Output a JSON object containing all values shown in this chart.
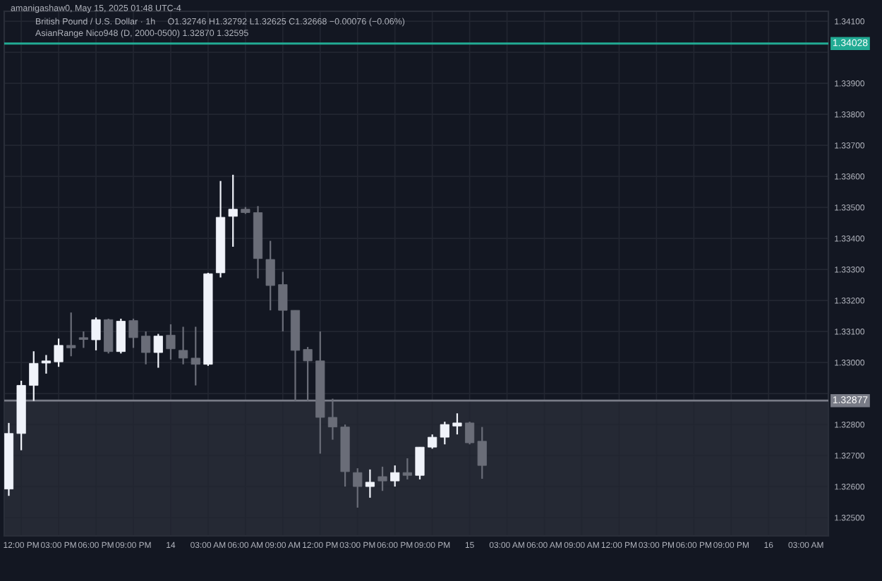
{
  "chart_data": {
    "type": "candlestick",
    "title": "British Pound / U.S. Dollar · 1h",
    "subtitle": "O1.32746 H1.32792 L1.32625 C1.32668 −0.00076 (−0.06%)",
    "annotations": [
      "amanigashaw0, May 15, 2025 01:48 UTC-4",
      "AsianRange Nico948 (D, 2000-0500) 1.32870 1.32595"
    ],
    "x": [
      "2025-05-13T11:00",
      "2025-05-13T12:00",
      "2025-05-13T13:00",
      "2025-05-13T14:00",
      "2025-05-13T15:00",
      "2025-05-13T16:00",
      "2025-05-13T17:00",
      "2025-05-13T18:00",
      "2025-05-13T19:00",
      "2025-05-13T20:00",
      "2025-05-13T21:00",
      "2025-05-13T22:00",
      "2025-05-13T23:00",
      "2025-05-14T00:00",
      "2025-05-14T01:00",
      "2025-05-14T02:00",
      "2025-05-14T03:00",
      "2025-05-14T04:00",
      "2025-05-14T05:00",
      "2025-05-14T06:00",
      "2025-05-14T07:00",
      "2025-05-14T08:00",
      "2025-05-14T09:00",
      "2025-05-14T10:00",
      "2025-05-14T11:00",
      "2025-05-14T12:00",
      "2025-05-14T13:00",
      "2025-05-14T14:00",
      "2025-05-14T15:00",
      "2025-05-14T16:00",
      "2025-05-14T17:00",
      "2025-05-14T18:00",
      "2025-05-14T19:00",
      "2025-05-14T20:00",
      "2025-05-14T21:00",
      "2025-05-14T22:00",
      "2025-05-14T23:00",
      "2025-05-15T00:00",
      "2025-05-15T01:00"
    ],
    "ohlc": [
      [
        1.32592,
        1.32805,
        1.3257,
        1.32771
      ],
      [
        1.32771,
        1.32941,
        1.32717,
        1.32926
      ],
      [
        1.32926,
        1.33036,
        1.32876,
        1.32997
      ],
      [
        1.32998,
        1.33024,
        1.32964,
        1.33005
      ],
      [
        1.33002,
        1.33077,
        1.32986,
        1.33055
      ],
      [
        1.33055,
        1.33161,
        1.3302,
        1.33047
      ],
      [
        1.3308,
        1.331,
        1.33047,
        1.33074
      ],
      [
        1.33073,
        1.33145,
        1.33039,
        1.33138
      ],
      [
        1.33138,
        1.33141,
        1.33029,
        1.33035
      ],
      [
        1.33035,
        1.33141,
        1.33029,
        1.33133
      ],
      [
        1.33135,
        1.33141,
        1.33047,
        1.3308
      ],
      [
        1.33085,
        1.331,
        1.32994,
        1.33032
      ],
      [
        1.33032,
        1.33092,
        1.32983,
        1.33085
      ],
      [
        1.33088,
        1.33123,
        1.33009,
        1.33044
      ],
      [
        1.33039,
        1.33115,
        1.32994,
        1.33014
      ],
      [
        1.33014,
        1.33115,
        1.32926,
        1.32994
      ],
      [
        1.32994,
        1.33289,
        1.32989,
        1.33286
      ],
      [
        1.33289,
        1.33585,
        1.33274,
        1.33468
      ],
      [
        1.33471,
        1.33605,
        1.33373,
        1.33494
      ],
      [
        1.33494,
        1.33501,
        1.33479,
        1.33483
      ],
      [
        1.33483,
        1.33504,
        1.33271,
        1.33335
      ],
      [
        1.33332,
        1.33392,
        1.33168,
        1.33248
      ],
      [
        1.33251,
        1.33292,
        1.331,
        1.33168
      ],
      [
        1.33168,
        1.33168,
        1.32876,
        1.33039
      ],
      [
        1.33042,
        1.3305,
        1.32876,
        1.33005
      ],
      [
        1.33005,
        1.331,
        1.32706,
        1.32823
      ],
      [
        1.32823,
        1.32883,
        1.32751,
        1.32792
      ],
      [
        1.32792,
        1.328,
        1.326,
        1.32648
      ],
      [
        1.32645,
        1.32659,
        1.32532,
        1.326
      ],
      [
        1.326,
        1.32655,
        1.32564,
        1.32614
      ],
      [
        1.32632,
        1.32664,
        1.32586,
        1.32618
      ],
      [
        1.32618,
        1.32668,
        1.326,
        1.32645
      ],
      [
        1.32645,
        1.32691,
        1.32623,
        1.32636
      ],
      [
        1.32636,
        1.32727,
        1.32623,
        1.32727
      ],
      [
        1.32727,
        1.32768,
        1.32722,
        1.32759
      ],
      [
        1.32759,
        1.32809,
        1.32736,
        1.328
      ],
      [
        1.32795,
        1.32836,
        1.32768,
        1.32805
      ],
      [
        1.32805,
        1.32809,
        1.32736,
        1.32741
      ],
      [
        1.32746,
        1.32792,
        1.32625,
        1.32668
      ]
    ],
    "colors": [
      "#f0f3fa",
      "#f0f3fa",
      "#f0f3fa",
      "#f0f3fa",
      "#f0f3fa",
      "#6a6d78",
      "#6a6d78",
      "#f0f3fa",
      "#6a6d78",
      "#f0f3fa",
      "#6a6d78",
      "#6a6d78",
      "#f0f3fa",
      "#6a6d78",
      "#6a6d78",
      "#6a6d78",
      "#f0f3fa",
      "#f0f3fa",
      "#f0f3fa",
      "#6a6d78",
      "#6a6d78",
      "#6a6d78",
      "#6a6d78",
      "#6a6d78",
      "#6a6d78",
      "#6a6d78",
      "#6a6d78",
      "#6a6d78",
      "#6a6d78",
      "#f0f3fa",
      "#6a6d78",
      "#f0f3fa",
      "#6a6d78",
      "#f0f3fa",
      "#f0f3fa",
      "#f0f3fa",
      "#f0f3fa",
      "#6a6d78",
      "#6a6d78"
    ],
    "xlim": [
      "2025-05-13T10:38",
      "2025-05-16T04:48"
    ],
    "xticks": [
      {
        "value": "2025-05-13T12:00",
        "label": "12:00 PM"
      },
      {
        "value": "2025-05-13T15:00",
        "label": "03:00 PM"
      },
      {
        "value": "2025-05-13T18:00",
        "label": "06:00 PM"
      },
      {
        "value": "2025-05-13T21:00",
        "label": "09:00 PM"
      },
      {
        "value": "2025-05-14",
        "label": "14"
      },
      {
        "value": "2025-05-14T03:00",
        "label": "03:00 AM"
      },
      {
        "value": "2025-05-14T06:00",
        "label": "06:00 AM"
      },
      {
        "value": "2025-05-14T09:00",
        "label": "09:00 AM"
      },
      {
        "value": "2025-05-14T12:00",
        "label": "12:00 PM"
      },
      {
        "value": "2025-05-14T15:00",
        "label": "03:00 PM"
      },
      {
        "value": "2025-05-14T18:00",
        "label": "06:00 PM"
      },
      {
        "value": "2025-05-14T21:00",
        "label": "09:00 PM"
      },
      {
        "value": "2025-05-15",
        "label": "15"
      },
      {
        "value": "2025-05-15T03:00",
        "label": "03:00 AM"
      },
      {
        "value": "2025-05-15T06:00",
        "label": "06:00 AM"
      },
      {
        "value": "2025-05-15T09:00",
        "label": "09:00 AM"
      },
      {
        "value": "2025-05-15T12:00",
        "label": "12:00 PM"
      },
      {
        "value": "2025-05-15T15:00",
        "label": "03:00 PM"
      },
      {
        "value": "2025-05-15T18:00",
        "label": "06:00 PM"
      },
      {
        "value": "2025-05-15T21:00",
        "label": "09:00 PM"
      },
      {
        "value": "2025-05-16",
        "label": "16"
      },
      {
        "value": "2025-05-16T03:00",
        "label": "03:00 AM"
      }
    ],
    "ylim": [
      1.32441,
      1.34132
    ],
    "yticks": [
      {
        "value": 1.325,
        "label": "1.32500"
      },
      {
        "value": 1.326,
        "label": "1.32600"
      },
      {
        "value": 1.327,
        "label": "1.32700"
      },
      {
        "value": 1.328,
        "label": "1.32800"
      },
      {
        "value": 1.329,
        "label": null
      },
      {
        "value": 1.33,
        "label": "1.33000"
      },
      {
        "value": 1.331,
        "label": "1.33100"
      },
      {
        "value": 1.332,
        "label": "1.33200"
      },
      {
        "value": 1.333,
        "label": "1.33300"
      },
      {
        "value": 1.334,
        "label": "1.33400"
      },
      {
        "value": 1.335,
        "label": "1.33500"
      },
      {
        "value": 1.336,
        "label": "1.33600"
      },
      {
        "value": 1.337,
        "label": "1.33700"
      },
      {
        "value": 1.338,
        "label": "1.33800"
      },
      {
        "value": 1.339,
        "label": "1.33900"
      },
      {
        "value": 1.34,
        "label": null
      },
      {
        "value": 1.341,
        "label": "1.34100"
      }
    ],
    "grid": true,
    "ref_lines": [
      {
        "axis": "y",
        "value": 1.32877,
        "label": "1.32877",
        "color": "#787b86"
      },
      {
        "axis": "y",
        "value": 1.34028,
        "label": "1.34028",
        "color": "#22ab94"
      }
    ],
    "bands": [
      {
        "axis": "y",
        "from": 1.32441,
        "to": 1.32877,
        "color": "#2a2e39"
      }
    ]
  }
}
